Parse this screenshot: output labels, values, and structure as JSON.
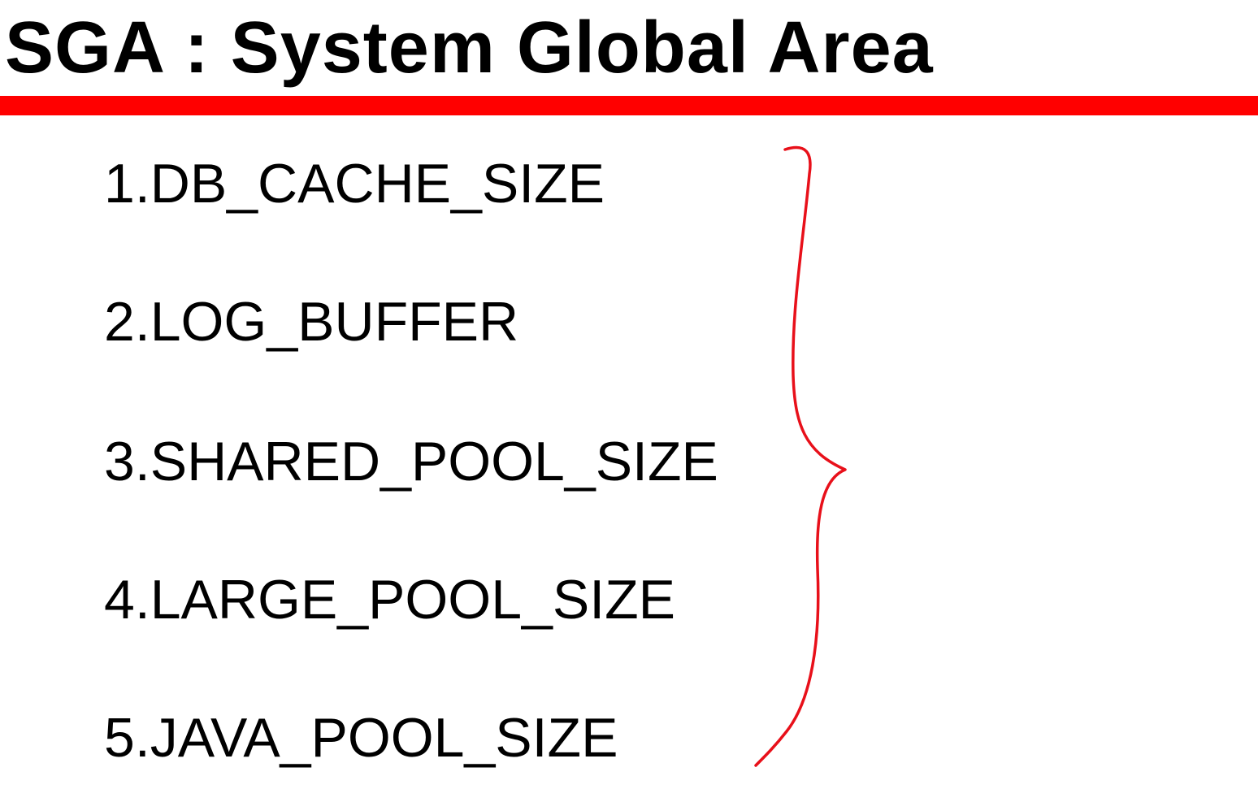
{
  "slide": {
    "title": "SGA : System Global Area",
    "accent_color": "#ff0000",
    "items": [
      {
        "label": "1.DB_CACHE_SIZE"
      },
      {
        "label": "2.LOG_BUFFER"
      },
      {
        "label": "3.SHARED_POOL_SIZE"
      },
      {
        "label": "4.LARGE_POOL_SIZE"
      },
      {
        "label": "5.JAVA_POOL_SIZE"
      }
    ],
    "annotation_icon": "curly-brace-icon"
  }
}
